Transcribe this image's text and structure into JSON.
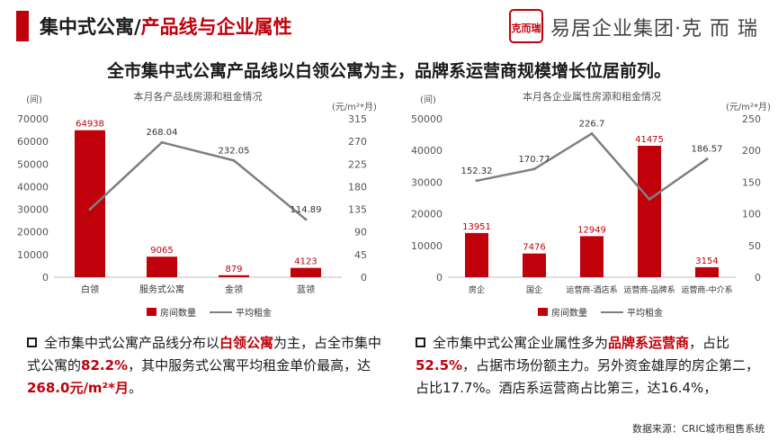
{
  "header": {
    "title_part1": "集中式公寓/",
    "title_part2": "产品线与企业属性",
    "brand_name": "易居企业集团·克 而 瑞",
    "brand_logo_text": "克而瑞"
  },
  "headline": "全市集中式公寓产品线以白领公寓为主，品牌系运营商规模增长位居前列。",
  "colors": {
    "accent": "#c0000b",
    "bar": "#c0000b",
    "line": "#7f7f7f"
  },
  "chart_data": [
    {
      "type": "bar",
      "title": "本月各产品线房源和租金情况",
      "categories": [
        "白领",
        "服务式公寓",
        "金领",
        "蓝领"
      ],
      "ylabel": "(间)",
      "y2label": "(元/m²*月)",
      "ylim": [
        0,
        70000
      ],
      "y2lim": [
        0,
        315
      ],
      "yticks": [
        0,
        10000,
        20000,
        30000,
        40000,
        50000,
        60000,
        70000
      ],
      "y2ticks": [
        0,
        45,
        90,
        135,
        180,
        225,
        270,
        315
      ],
      "series": [
        {
          "name": "房间数量",
          "type": "bar",
          "axis": "left",
          "values": [
            64938,
            9065,
            879,
            4123
          ],
          "labels": [
            "64938",
            "9065",
            "879",
            "4123"
          ]
        },
        {
          "name": "平均租金",
          "type": "line",
          "axis": "right",
          "values": [
            135.0,
            268.04,
            232.05,
            114.89
          ],
          "labels": [
            "",
            "268.04",
            "232.05",
            "114.89"
          ]
        }
      ],
      "legend_position": "bottom"
    },
    {
      "type": "bar",
      "title": "本月各企业属性房源和租金情况",
      "categories": [
        "房企",
        "国企",
        "运营商-酒店系",
        "运营商-品牌系",
        "运营商-中介系"
      ],
      "ylabel": "(间)",
      "y2label": "(元/m²*月)",
      "ylim": [
        0,
        50000
      ],
      "y2lim": [
        0,
        250
      ],
      "yticks": [
        0,
        10000,
        20000,
        30000,
        40000,
        50000
      ],
      "y2ticks": [
        0,
        50,
        100,
        150,
        200,
        250
      ],
      "series": [
        {
          "name": "房间数量",
          "type": "bar",
          "axis": "left",
          "values": [
            13951,
            7476,
            12949,
            41475,
            3154
          ],
          "labels": [
            "13951",
            "7476",
            "12949",
            "41475",
            "3154"
          ]
        },
        {
          "name": "平均租金",
          "type": "line",
          "axis": "right",
          "values": [
            152.32,
            170.77,
            226.7,
            123.0,
            186.57
          ],
          "labels": [
            "152.32",
            "170.77",
            "226.7",
            "",
            "186.57"
          ]
        }
      ],
      "legend_position": "bottom"
    }
  ],
  "notes": {
    "left": {
      "p1": "全市集中式公寓产品线分布以",
      "h1": "白领公寓",
      "p2": "为主，占全市集中式公寓的",
      "h2": "82.2%",
      "p3": "，其中服务式公寓平均租金单价最高，达",
      "h3": "268.0元/m²*月",
      "p4": "。"
    },
    "right": {
      "p1": "全市集中式公寓企业属性多为",
      "h1": "品牌系运营商",
      "p2": "，占比",
      "h2": "52.5%",
      "p3": "，占据市场份额主力。另外资金雄厚的房企第二，占比17.7%。酒店系运营商占比第三，达16.4%，"
    }
  },
  "source": "数据来源：CRIC城市租售系统"
}
